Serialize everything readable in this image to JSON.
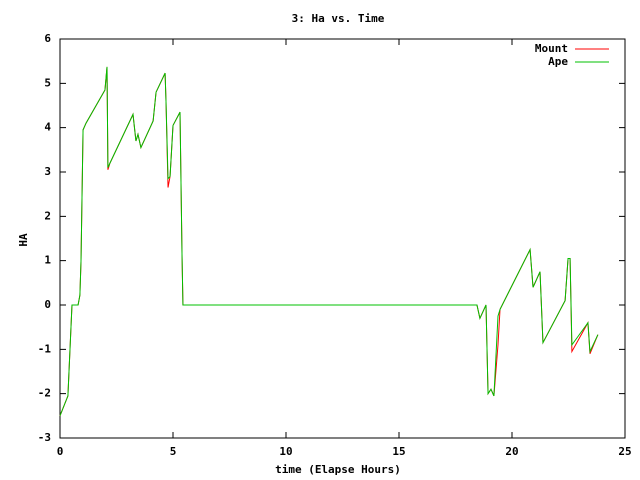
{
  "chart_data": {
    "type": "line",
    "title": "3: Ha vs. Time",
    "x_label": "time (Elapse Hours)",
    "y_label": "HA",
    "x": [
      0,
      0.35,
      0.53,
      0.8,
      0.88,
      0.93,
      1.02,
      1.15,
      1.99,
      2.08,
      2.12,
      2.21,
      3.23,
      3.36,
      3.45,
      3.58,
      4.12,
      4.25,
      4.65,
      4.69,
      4.78,
      4.87,
      5.0,
      5.31,
      5.4,
      5.44,
      18.45,
      18.58,
      18.85,
      18.94,
      19.07,
      19.2,
      19.38,
      19.47,
      20.8,
      20.93,
      21.24,
      21.37,
      22.35,
      22.48,
      22.57,
      22.65,
      23.36,
      23.45,
      23.8
    ],
    "series": [
      {
        "name": "Mount",
        "color": "#ff0000",
        "values": [
          -2.5,
          -2.05,
          0,
          0,
          0.22,
          1.0,
          3.95,
          4.1,
          4.85,
          5.37,
          3.05,
          3.2,
          4.3,
          3.7,
          3.85,
          3.55,
          4.15,
          4.8,
          5.23,
          4.6,
          2.65,
          2.9,
          4.05,
          4.35,
          1.1,
          0,
          0,
          -0.3,
          0,
          -2.0,
          -1.9,
          -2.05,
          -0.9,
          -0.1,
          1.25,
          0.4,
          0.75,
          -0.85,
          0.1,
          1.05,
          1.05,
          -1.05,
          -0.4,
          -1.1,
          -0.67
        ]
      },
      {
        "name": "Ape",
        "color": "#00c000",
        "values": [
          -2.5,
          -2.05,
          0,
          0,
          0.22,
          1.0,
          3.95,
          4.1,
          4.85,
          5.37,
          3.1,
          3.2,
          4.3,
          3.7,
          3.85,
          3.55,
          4.15,
          4.8,
          5.23,
          4.6,
          2.85,
          2.9,
          4.05,
          4.35,
          1.1,
          0,
          0,
          -0.3,
          0,
          -2.0,
          -1.9,
          -2.05,
          -0.25,
          -0.1,
          1.25,
          0.4,
          0.75,
          -0.85,
          0.1,
          1.05,
          1.05,
          -0.9,
          -0.4,
          -1.05,
          -0.67
        ]
      }
    ],
    "xlim": [
      0,
      25
    ],
    "xticks": [
      0,
      5,
      10,
      15,
      20,
      25
    ],
    "ylim": [
      -3,
      6
    ],
    "yticks": [
      -3,
      -2,
      -1,
      0,
      1,
      2,
      3,
      4,
      5,
      6
    ],
    "legend": "top-right",
    "grid": false
  }
}
